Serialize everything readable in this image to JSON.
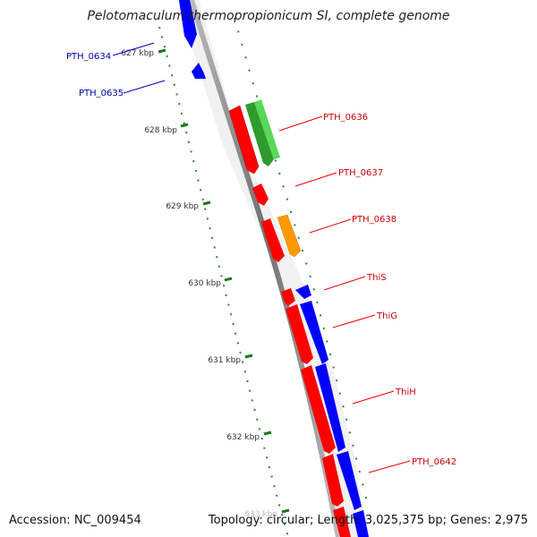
{
  "title": "Pelotomaculum thermopropionicum SI, complete genome",
  "footer": {
    "accession": "Accession: NC_009454",
    "summary": "Topology: circular; Length: 3,025,375 bp; Genes: 2,975"
  },
  "colors": {
    "backbone": "#808080",
    "tick": "#1a7a1a",
    "red_feature": "#ff0000",
    "blue_feature": "#0000ff",
    "green_feature": "#33cc33",
    "orange_feature": "#ff9900",
    "red_label": "#cc0000",
    "blue_label": "#0000aa"
  },
  "ticks": [
    {
      "label": "627 kbp"
    },
    {
      "label": "628 kbp"
    },
    {
      "label": "629 kbp"
    },
    {
      "label": "630 kbp"
    },
    {
      "label": "631 kbp"
    },
    {
      "label": "632 kbp"
    },
    {
      "label": "633 kbp"
    }
  ],
  "labels": [
    {
      "text": "PTH_0634",
      "color": "blue"
    },
    {
      "text": "PTH_0635",
      "color": "blue"
    },
    {
      "text": "PTH_0636",
      "color": "red"
    },
    {
      "text": "PTH_0637",
      "color": "red"
    },
    {
      "text": "PTH_0638",
      "color": "red"
    },
    {
      "text": "ThiS",
      "color": "red"
    },
    {
      "text": "ThiG",
      "color": "red"
    },
    {
      "text": "ThiH",
      "color": "red"
    },
    {
      "text": "PTH_0642",
      "color": "red"
    }
  ]
}
